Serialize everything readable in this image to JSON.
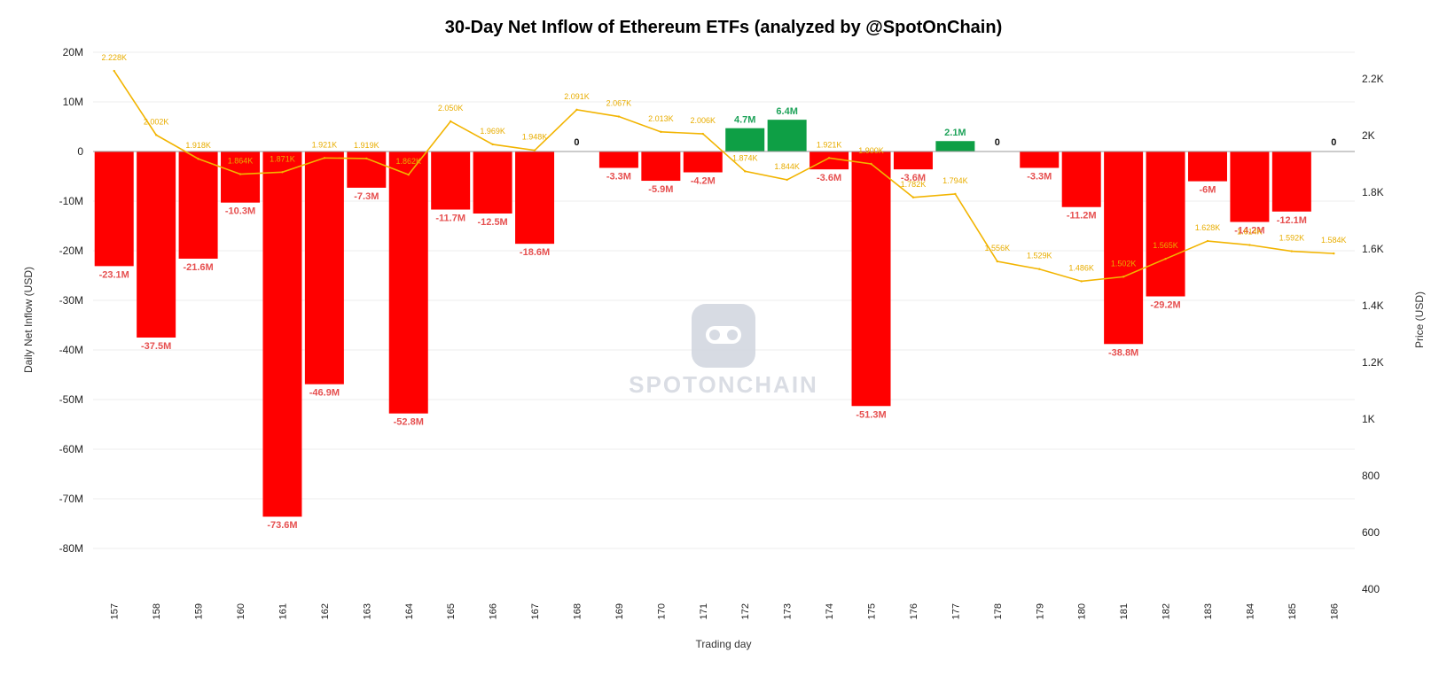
{
  "chart_data": {
    "type": "bar",
    "title": "30-Day Net Inflow of Ethereum ETFs (analyzed by @SpotOnChain)",
    "xlabel": "Trading day",
    "ylabel": "Daily Net Inflow (USD)",
    "y2label": "Price (USD)",
    "categories": [
      "157",
      "158",
      "159",
      "160",
      "161",
      "162",
      "163",
      "164",
      "165",
      "166",
      "167",
      "168",
      "169",
      "170",
      "171",
      "172",
      "173",
      "174",
      "175",
      "176",
      "177",
      "178",
      "179",
      "180",
      "181",
      "182",
      "183",
      "184",
      "185",
      "186"
    ],
    "series": [
      {
        "name": "Daily Net Inflow",
        "axis": "left",
        "values": [
          -23.1,
          -37.5,
          -21.6,
          -10.3,
          -73.6,
          -46.9,
          -7.3,
          -52.8,
          -11.7,
          -12.5,
          -18.6,
          0,
          -3.3,
          -5.9,
          -4.2,
          4.7,
          6.4,
          -3.6,
          -51.3,
          -3.6,
          2.1,
          0,
          -3.3,
          -11.2,
          -38.8,
          -29.2,
          -6,
          -14.2,
          -12.1,
          0
        ],
        "labels": [
          "-23.1M",
          "-37.5M",
          "-21.6M",
          "-10.3M",
          "-73.6M",
          "-46.9M",
          "-7.3M",
          "-52.8M",
          "-11.7M",
          "-12.5M",
          "-18.6M",
          "0",
          "-3.3M",
          "-5.9M",
          "-4.2M",
          "4.7M",
          "6.4M",
          "-3.6M",
          "-51.3M",
          "-3.6M",
          "2.1M",
          "0",
          "-3.3M",
          "-11.2M",
          "-38.8M",
          "-29.2M",
          "-6M",
          "-14.2M",
          "-12.1M",
          "0"
        ]
      },
      {
        "name": "Price",
        "type": "line",
        "axis": "right",
        "values": [
          2228,
          2002,
          1918,
          1864,
          1871,
          1921,
          1919,
          1862,
          2050,
          1969,
          1948,
          2091,
          2067,
          2013,
          2006,
          1874,
          1844,
          1921,
          1900,
          1782,
          1794,
          1556,
          1529,
          1486,
          1502,
          1565,
          1628,
          1614,
          1592,
          1584
        ],
        "labels": [
          "2.228K",
          "2.002K",
          "1.918K",
          "1.864K",
          "1.871K",
          "1.921K",
          "1.919K",
          "1.862K",
          "2.050K",
          "1.969K",
          "1.948K",
          "2.091K",
          "2.067K",
          "2.013K",
          "2.006K",
          "1.874K",
          "1.844K",
          "1.921K",
          "1.900K",
          "1.782K",
          "1.794K",
          "1.556K",
          "1.529K",
          "1.486K",
          "1.502K",
          "1.565K",
          "1.628K",
          "1.614K",
          "1.592K",
          "1.584K"
        ]
      }
    ],
    "ylim": [
      -87.5,
      20
    ],
    "yticks": [
      20,
      10,
      0,
      -10,
      -20,
      -30,
      -40,
      -50,
      -60,
      -70,
      -80
    ],
    "ytick_labels": [
      "20M",
      "10M",
      "0",
      "-10M",
      "-20M",
      "-30M",
      "-40M",
      "-50M",
      "-60M",
      "-70M",
      "-80M"
    ],
    "y2lim": [
      400,
      2400
    ],
    "y2ticks": [
      2200,
      2000,
      1800,
      1600,
      1400,
      1200,
      1000,
      800,
      600,
      400
    ],
    "y2tick_labels": [
      "2.2K",
      "2K",
      "1.8K",
      "1.6K",
      "1.4K",
      "1.2K",
      "1K",
      "800",
      "600",
      "400"
    ],
    "grid": true,
    "colors": {
      "negative": "#ff0000",
      "positive": "#0e9f45",
      "price_line": "#f2b400",
      "neg_label": "#e65050",
      "pos_label": "#1fa35a"
    }
  },
  "watermark": {
    "text": "SPOTONCHAIN",
    "icon": "spotonchain-logo-icon"
  }
}
